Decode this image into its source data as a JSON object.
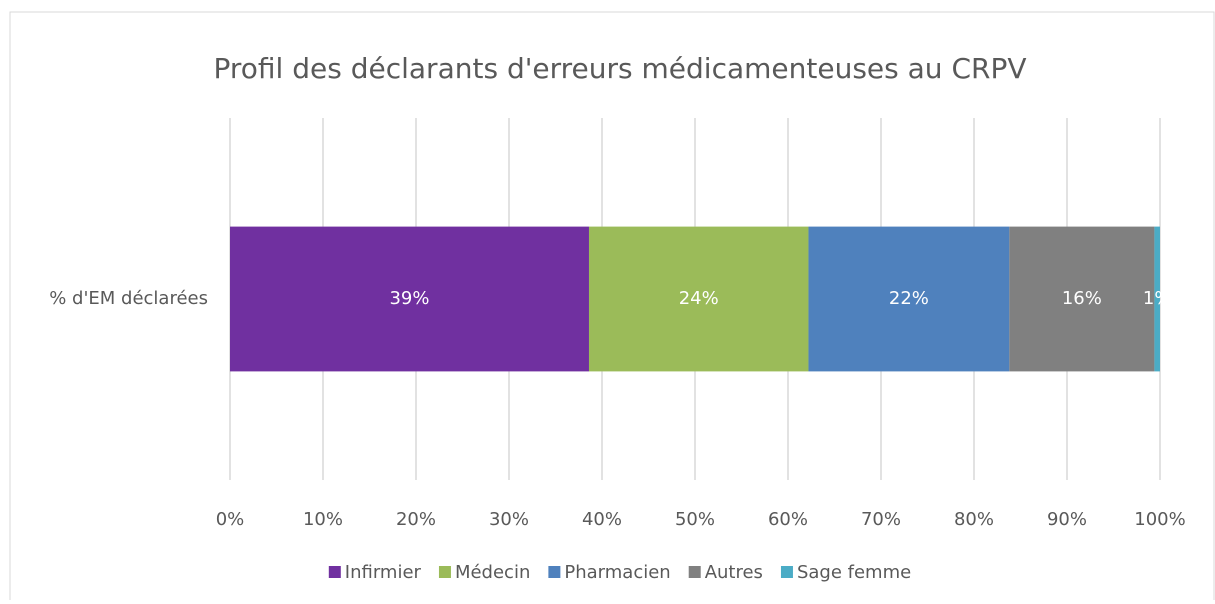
{
  "chart_data": {
    "type": "stacked_barh",
    "title": "Profil des déclarants d'erreurs médicamenteuses au CRPV",
    "categories": [
      "% d'EM déclarées"
    ],
    "series": [
      {
        "name": "Infirmier",
        "color": "#7030a0",
        "values": [
          38.6
        ],
        "value_labels": [
          "39%"
        ]
      },
      {
        "name": "Médecin",
        "color": "#9bbb59",
        "values": [
          23.6
        ],
        "value_labels": [
          "24%"
        ]
      },
      {
        "name": "Pharmacien",
        "color": "#4f81bd",
        "values": [
          21.6
        ],
        "value_labels": [
          "22%"
        ]
      },
      {
        "name": "Autres",
        "color": "#808080",
        "values": [
          15.6
        ],
        "value_labels": [
          "16%"
        ]
      },
      {
        "name": "Sage femme",
        "color": "#4bacc6",
        "values": [
          0.6
        ],
        "value_labels": [
          "1%"
        ]
      }
    ],
    "xlim": [
      0,
      100
    ],
    "xticks": [
      {
        "value": 0,
        "label": "0%"
      },
      {
        "value": 10,
        "label": "10%"
      },
      {
        "value": 20,
        "label": "20%"
      },
      {
        "value": 30,
        "label": "30%"
      },
      {
        "value": 40,
        "label": "40%"
      },
      {
        "value": 50,
        "label": "50%"
      },
      {
        "value": 60,
        "label": "60%"
      },
      {
        "value": 70,
        "label": "70%"
      },
      {
        "value": 80,
        "label": "80%"
      },
      {
        "value": 90,
        "label": "90%"
      },
      {
        "value": 100,
        "label": "100%"
      }
    ],
    "grid": true,
    "legend": "bottom"
  }
}
